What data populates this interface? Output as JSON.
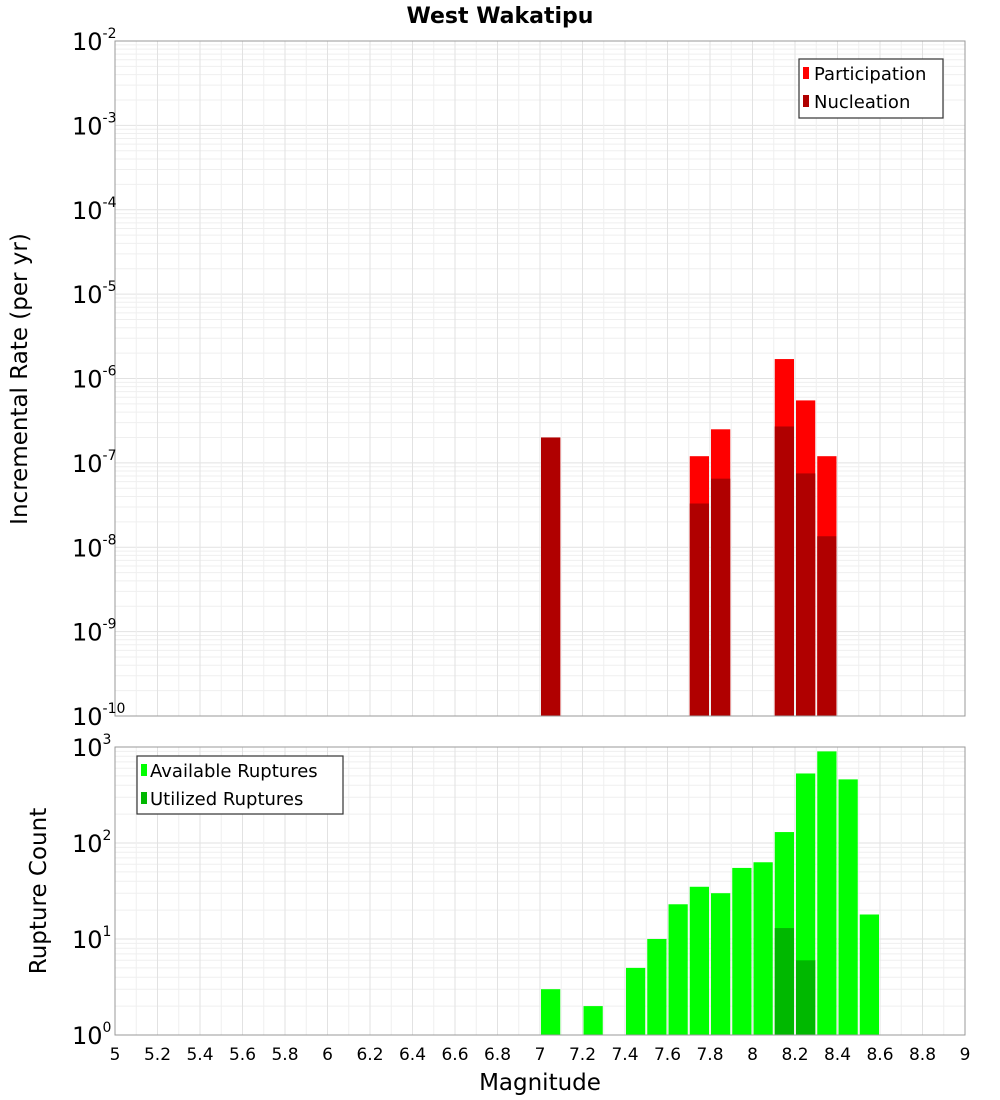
{
  "title": "West Wakatipu",
  "colors": {
    "participation": "#ff0000",
    "nucleation": "#b00000",
    "available": "#00ff00",
    "utilized": "#00b800"
  },
  "chart_data": [
    {
      "type": "bar",
      "id": "rate",
      "ylabel": "Incremental Rate (per yr)",
      "xlim": [
        5,
        9
      ],
      "yscale": "log",
      "ylim_exp": [
        -10,
        -2
      ],
      "bin_width": 0.1,
      "legend_position": "top-right",
      "series": [
        {
          "name": "Participation",
          "color_key": "participation",
          "points": [
            {
              "x": 7.05,
              "y": 2e-07
            },
            {
              "x": 7.75,
              "y": 1.2e-07
            },
            {
              "x": 7.85,
              "y": 2.5e-07
            },
            {
              "x": 8.15,
              "y": 1.7e-06
            },
            {
              "x": 8.25,
              "y": 5.5e-07
            },
            {
              "x": 8.35,
              "y": 1.2e-07
            }
          ]
        },
        {
          "name": "Nucleation",
          "color_key": "nucleation",
          "points": [
            {
              "x": 7.05,
              "y": 2e-07
            },
            {
              "x": 7.75,
              "y": 3.3e-08
            },
            {
              "x": 7.85,
              "y": 6.5e-08
            },
            {
              "x": 8.15,
              "y": 2.7e-07
            },
            {
              "x": 8.25,
              "y": 7.5e-08
            },
            {
              "x": 8.35,
              "y": 1.35e-08
            }
          ]
        }
      ]
    },
    {
      "type": "bar",
      "id": "count",
      "ylabel": "Rupture Count",
      "xlabel": "Magnitude",
      "xlim": [
        5,
        9
      ],
      "xticks": [
        "5",
        "5.2",
        "5.4",
        "5.6",
        "5.8",
        "6",
        "6.2",
        "6.4",
        "6.6",
        "6.8",
        "7",
        "7.2",
        "7.4",
        "7.6",
        "7.8",
        "8",
        "8.2",
        "8.4",
        "8.6",
        "8.8",
        "9"
      ],
      "yscale": "log",
      "ylim_exp": [
        0,
        3
      ],
      "bin_width": 0.1,
      "legend_position": "top-left",
      "series": [
        {
          "name": "Available Ruptures",
          "color_key": "available",
          "points": [
            {
              "x": 7.05,
              "y": 3
            },
            {
              "x": 7.25,
              "y": 2
            },
            {
              "x": 7.35,
              "y": 1
            },
            {
              "x": 7.45,
              "y": 5
            },
            {
              "x": 7.55,
              "y": 10
            },
            {
              "x": 7.65,
              "y": 23
            },
            {
              "x": 7.75,
              "y": 35
            },
            {
              "x": 7.85,
              "y": 30
            },
            {
              "x": 7.95,
              "y": 55
            },
            {
              "x": 8.05,
              "y": 63
            },
            {
              "x": 8.15,
              "y": 130
            },
            {
              "x": 8.25,
              "y": 530
            },
            {
              "x": 8.35,
              "y": 900
            },
            {
              "x": 8.45,
              "y": 460
            },
            {
              "x": 8.55,
              "y": 18
            }
          ]
        },
        {
          "name": "Utilized Ruptures",
          "color_key": "utilized",
          "points": [
            {
              "x": 7.05,
              "y": 1
            },
            {
              "x": 7.75,
              "y": 1
            },
            {
              "x": 7.85,
              "y": 1
            },
            {
              "x": 8.15,
              "y": 13
            },
            {
              "x": 8.25,
              "y": 6
            },
            {
              "x": 8.35,
              "y": 1
            }
          ]
        }
      ]
    }
  ]
}
